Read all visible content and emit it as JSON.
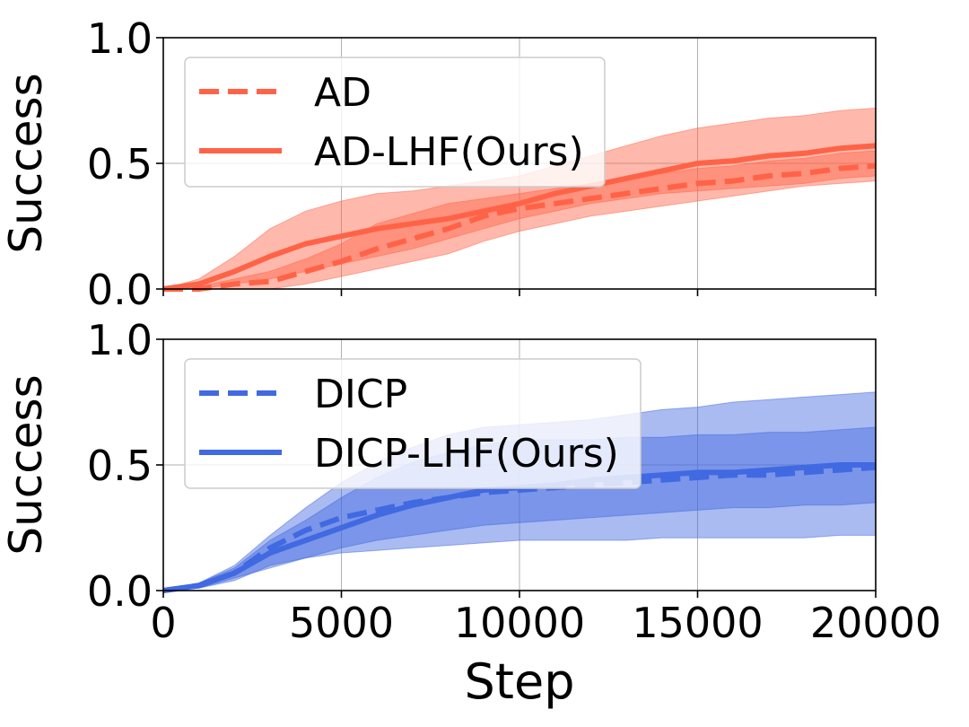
{
  "chart_data": [
    {
      "type": "line",
      "title": "",
      "xlabel": "",
      "ylabel": "Success",
      "xlim": [
        0,
        20000
      ],
      "ylim": [
        0,
        1
      ],
      "yticks": [
        "0.0",
        "0.5",
        "1.0"
      ],
      "xticks": [
        0,
        5000,
        10000,
        15000,
        20000
      ],
      "grid": true,
      "legend": "top-left",
      "color": "#FF6347",
      "x": [
        0,
        1000,
        2000,
        3000,
        4000,
        5000,
        6000,
        7000,
        8000,
        9000,
        10000,
        11000,
        12000,
        13000,
        14000,
        15000,
        16000,
        17000,
        18000,
        19000,
        20000
      ],
      "series": [
        {
          "name": "AD",
          "style": "dashed",
          "values": [
            0.0,
            0.0,
            0.02,
            0.03,
            0.07,
            0.11,
            0.16,
            0.2,
            0.24,
            0.29,
            0.32,
            0.34,
            0.36,
            0.38,
            0.4,
            0.42,
            0.43,
            0.45,
            0.46,
            0.48,
            0.49
          ],
          "lower": [
            0.0,
            0.0,
            0.0,
            0.0,
            0.02,
            0.05,
            0.08,
            0.11,
            0.14,
            0.19,
            0.23,
            0.26,
            0.29,
            0.31,
            0.33,
            0.35,
            0.37,
            0.39,
            0.41,
            0.42,
            0.43
          ],
          "upper": [
            0.0,
            0.01,
            0.04,
            0.07,
            0.12,
            0.18,
            0.26,
            0.3,
            0.34,
            0.36,
            0.38,
            0.4,
            0.42,
            0.44,
            0.46,
            0.48,
            0.49,
            0.51,
            0.52,
            0.54,
            0.55
          ]
        },
        {
          "name": "AD-LHF(Ours)",
          "style": "solid",
          "values": [
            0.0,
            0.02,
            0.07,
            0.13,
            0.18,
            0.21,
            0.24,
            0.26,
            0.28,
            0.31,
            0.34,
            0.38,
            0.41,
            0.44,
            0.47,
            0.5,
            0.51,
            0.53,
            0.54,
            0.56,
            0.57
          ],
          "lower": [
            0.0,
            0.0,
            0.02,
            0.04,
            0.07,
            0.1,
            0.13,
            0.16,
            0.2,
            0.24,
            0.28,
            0.31,
            0.34,
            0.36,
            0.38,
            0.39,
            0.4,
            0.41,
            0.42,
            0.44,
            0.45
          ],
          "upper": [
            0.0,
            0.04,
            0.13,
            0.24,
            0.31,
            0.35,
            0.38,
            0.39,
            0.41,
            0.43,
            0.45,
            0.49,
            0.53,
            0.57,
            0.61,
            0.64,
            0.66,
            0.68,
            0.69,
            0.71,
            0.72
          ]
        }
      ]
    },
    {
      "type": "line",
      "title": "",
      "xlabel": "Step",
      "ylabel": "Success",
      "xlim": [
        0,
        20000
      ],
      "ylim": [
        0,
        1
      ],
      "yticks": [
        "0.0",
        "0.5",
        "1.0"
      ],
      "xticks": [
        0,
        5000,
        10000,
        15000,
        20000
      ],
      "grid": true,
      "legend": "top-left",
      "color": "#4169E1",
      "x": [
        0,
        1000,
        2000,
        3000,
        4000,
        5000,
        6000,
        7000,
        8000,
        9000,
        10000,
        11000,
        12000,
        13000,
        14000,
        15000,
        16000,
        17000,
        18000,
        19000,
        20000
      ],
      "series": [
        {
          "name": "DICP",
          "style": "dashed",
          "values": [
            0.0,
            0.02,
            0.07,
            0.17,
            0.24,
            0.29,
            0.32,
            0.35,
            0.37,
            0.39,
            0.4,
            0.41,
            0.42,
            0.43,
            0.44,
            0.45,
            0.46,
            0.46,
            0.47,
            0.48,
            0.49
          ],
          "lower": [
            0.0,
            0.01,
            0.04,
            0.1,
            0.13,
            0.15,
            0.16,
            0.17,
            0.18,
            0.19,
            0.2,
            0.2,
            0.2,
            0.2,
            0.21,
            0.21,
            0.21,
            0.21,
            0.21,
            0.22,
            0.22
          ],
          "upper": [
            0.0,
            0.03,
            0.1,
            0.22,
            0.33,
            0.43,
            0.51,
            0.57,
            0.62,
            0.65,
            0.66,
            0.67,
            0.68,
            0.7,
            0.72,
            0.73,
            0.75,
            0.76,
            0.77,
            0.78,
            0.79
          ]
        },
        {
          "name": "DICP-LHF(Ours)",
          "style": "solid",
          "values": [
            0.0,
            0.02,
            0.07,
            0.15,
            0.2,
            0.25,
            0.3,
            0.34,
            0.37,
            0.4,
            0.41,
            0.42,
            0.44,
            0.45,
            0.46,
            0.47,
            0.47,
            0.48,
            0.49,
            0.5,
            0.5
          ],
          "lower": [
            0.0,
            0.01,
            0.05,
            0.09,
            0.13,
            0.17,
            0.2,
            0.22,
            0.24,
            0.26,
            0.27,
            0.28,
            0.29,
            0.3,
            0.31,
            0.32,
            0.33,
            0.33,
            0.34,
            0.34,
            0.35
          ],
          "upper": [
            0.0,
            0.03,
            0.09,
            0.2,
            0.28,
            0.37,
            0.45,
            0.51,
            0.55,
            0.58,
            0.6,
            0.6,
            0.6,
            0.61,
            0.61,
            0.62,
            0.62,
            0.63,
            0.63,
            0.64,
            0.65
          ]
        }
      ]
    }
  ]
}
